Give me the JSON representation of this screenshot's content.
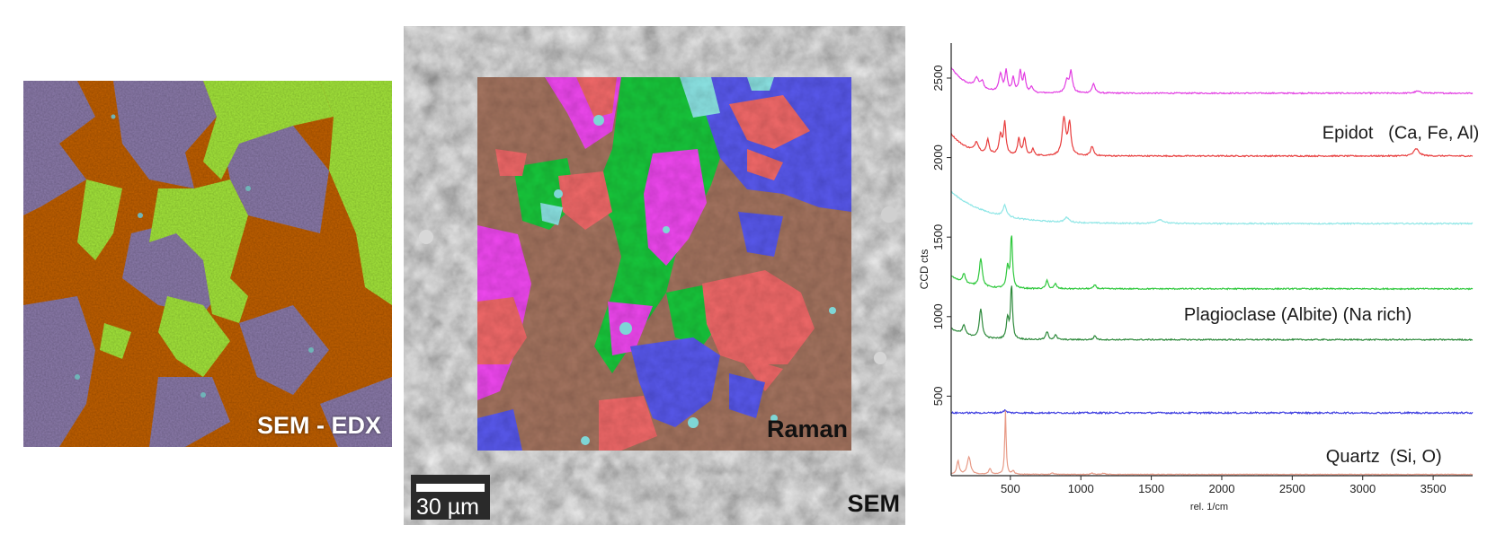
{
  "panels": {
    "edx_label": "SEM - EDX",
    "raman_label": "Raman",
    "sem_label": "SEM",
    "scale_bar": "30 µm"
  },
  "colors": {
    "edx_orange": "#c2620f",
    "edx_purple": "#8c7cab",
    "edx_green": "#a6e83c",
    "raman_brown": "#a47460",
    "raman_magenta": "#f049f0",
    "raman_salmon": "#f26a6a",
    "raman_green": "#1ec83c",
    "raman_blue": "#5a5aee",
    "raman_cyan": "#8ee6e6"
  },
  "chart_data": {
    "type": "line",
    "xlabel": "rel. 1/cm",
    "ylabel": "CCD cts",
    "xlim": [
      80,
      3780
    ],
    "ylim": [
      0,
      2720
    ],
    "xticks": [
      500,
      1000,
      1500,
      2000,
      2500,
      3000,
      3500
    ],
    "yticks": [
      500,
      1000,
      1500,
      2000,
      2500
    ],
    "grid": false,
    "annotations": [
      {
        "text": "Epidot   (Ca, Fe, Al)",
        "x": 3270,
        "y": 2120
      },
      {
        "text": "Plagioclase (Albite) (Na rich)",
        "x": 2540,
        "y": 975
      },
      {
        "text": "Quartz  (Si, O)",
        "x": 3150,
        "y": 85
      }
    ],
    "series": [
      {
        "color": "#e23ce2",
        "baseline": 2405,
        "noise": 4,
        "slope": [
          160,
          120
        ],
        "peaks": [
          [
            260,
            60,
            20
          ],
          [
            300,
            45,
            12
          ],
          [
            430,
            110,
            14
          ],
          [
            470,
            130,
            10
          ],
          [
            520,
            90,
            10
          ],
          [
            570,
            130,
            10
          ],
          [
            600,
            110,
            10
          ],
          [
            650,
            40,
            10
          ],
          [
            900,
            75,
            15
          ],
          [
            930,
            130,
            12
          ],
          [
            1090,
            60,
            12
          ],
          [
            3390,
            12,
            25
          ]
        ]
      },
      {
        "color": "#e83c3c",
        "baseline": 2010,
        "noise": 4,
        "slope": [
          140,
          120
        ],
        "peaks": [
          [
            260,
            60,
            15
          ],
          [
            340,
            90,
            10
          ],
          [
            430,
            120,
            12
          ],
          [
            460,
            200,
            10
          ],
          [
            560,
            110,
            10
          ],
          [
            600,
            110,
            10
          ],
          [
            660,
            40,
            10
          ],
          [
            880,
            230,
            15
          ],
          [
            920,
            200,
            12
          ],
          [
            1080,
            60,
            12
          ],
          [
            3380,
            45,
            22
          ]
        ]
      },
      {
        "color": "#8ee6e6",
        "baseline": 1585,
        "noise": 4,
        "slope": [
          200,
          260
        ],
        "peaks": [
          [
            460,
            70,
            15
          ],
          [
            900,
            30,
            20
          ],
          [
            1560,
            25,
            30
          ]
        ]
      },
      {
        "color": "#2ec83c",
        "baseline": 1175,
        "noise": 4,
        "slope": [
          80,
          120
        ],
        "peaks": [
          [
            170,
            60,
            12
          ],
          [
            290,
            180,
            12
          ],
          [
            480,
            130,
            10
          ],
          [
            508,
            340,
            8
          ],
          [
            760,
            50,
            10
          ],
          [
            820,
            30,
            10
          ],
          [
            1100,
            25,
            10
          ]
        ]
      },
      {
        "color": "#2e8a3c",
        "baseline": 855,
        "noise": 4,
        "slope": [
          70,
          120
        ],
        "peaks": [
          [
            170,
            60,
            12
          ],
          [
            290,
            180,
            12
          ],
          [
            480,
            130,
            10
          ],
          [
            508,
            340,
            8
          ],
          [
            760,
            50,
            10
          ],
          [
            820,
            30,
            10
          ],
          [
            1100,
            25,
            10
          ]
        ]
      },
      {
        "color": "#3c3ce0",
        "baseline": 395,
        "noise": 5,
        "slope": [
          0,
          100
        ],
        "peaks": [
          [
            460,
            15,
            15
          ]
        ]
      },
      {
        "color": "#e89a86",
        "baseline": 8,
        "noise": 2,
        "slope": [
          0,
          100
        ],
        "peaks": [
          [
            128,
            85,
            10
          ],
          [
            206,
            110,
            14
          ],
          [
            355,
            35,
            10
          ],
          [
            465,
            400,
            6
          ],
          [
            520,
            20,
            10
          ],
          [
            800,
            10,
            10
          ],
          [
            1080,
            8,
            10
          ],
          [
            1160,
            8,
            10
          ]
        ]
      }
    ]
  }
}
